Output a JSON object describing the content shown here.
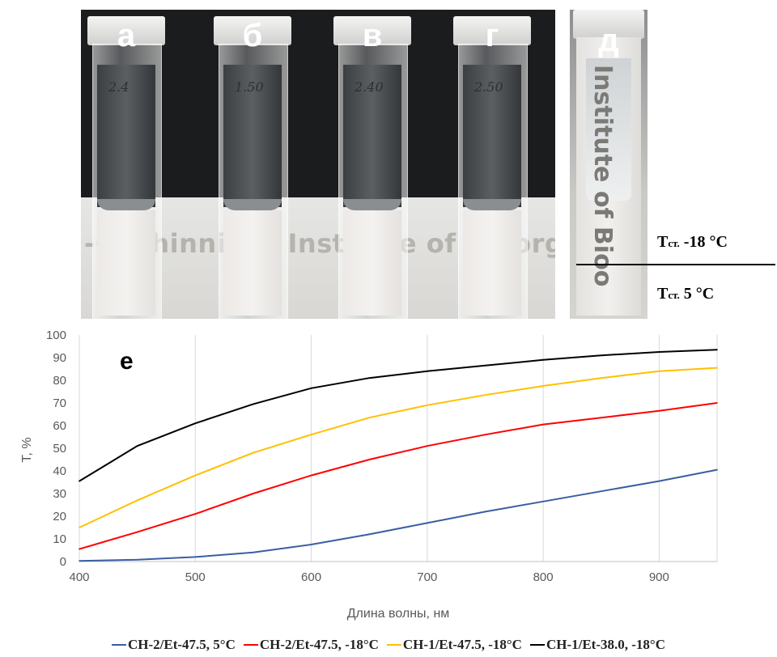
{
  "photo": {
    "panel_labels": [
      "а",
      "б",
      "в",
      "г",
      "д"
    ],
    "cuvette_marks": [
      "2.4",
      "1.50",
      "2.40",
      "2.50",
      ""
    ],
    "background_text": "-Ovchinnikov Institute of Bioorganic C",
    "background_text_d": "Institute of Bioo",
    "temperature_upper": {
      "prefix": "T",
      "sub": "ст.",
      "value": " -18 °C"
    },
    "temperature_lower": {
      "prefix": "T",
      "sub": "ст.",
      "value": " 5 °C"
    }
  },
  "chart_data": {
    "type": "line",
    "panel_label": "е",
    "xlabel": "Длина волны, нм",
    "ylabel": "T, %",
    "xlim": [
      400,
      950
    ],
    "ylim": [
      0,
      100
    ],
    "xticks": [
      400,
      500,
      600,
      700,
      800,
      900
    ],
    "yticks": [
      0,
      10,
      20,
      30,
      40,
      50,
      60,
      70,
      80,
      90,
      100
    ],
    "grid": "vertical",
    "legend_position": "bottom",
    "series": [
      {
        "name": "CH-2/Et-47.5, 5°C",
        "color": "#3a5ea3",
        "x": [
          400,
          450,
          500,
          550,
          600,
          650,
          700,
          750,
          800,
          850,
          900,
          950
        ],
        "y": [
          0.3,
          0.8,
          2,
          4,
          7.5,
          12,
          17,
          22,
          26.5,
          31,
          35.5,
          40.5
        ]
      },
      {
        "name": "CH-2/Et-47.5, -18°C",
        "color": "#ff0000",
        "x": [
          400,
          450,
          500,
          550,
          600,
          650,
          700,
          750,
          800,
          850,
          900,
          950
        ],
        "y": [
          5.5,
          13,
          21,
          30,
          38,
          45,
          51,
          56,
          60.5,
          63.5,
          66.5,
          70
        ]
      },
      {
        "name": "CH-1/Et-47.5, -18°C",
        "color": "#ffc000",
        "x": [
          400,
          450,
          500,
          550,
          600,
          650,
          700,
          750,
          800,
          850,
          900,
          950
        ],
        "y": [
          15,
          27,
          38,
          48,
          56,
          63.5,
          69,
          73.5,
          77.5,
          81,
          84,
          85.5
        ]
      },
      {
        "name": "CH-1/Et-38.0, -18°C",
        "color": "#000000",
        "x": [
          400,
          450,
          500,
          550,
          600,
          650,
          700,
          750,
          800,
          850,
          900,
          950
        ],
        "y": [
          35.5,
          51,
          61,
          69.5,
          76.5,
          81,
          84,
          86.5,
          89,
          91,
          92.5,
          93.5
        ]
      }
    ]
  }
}
